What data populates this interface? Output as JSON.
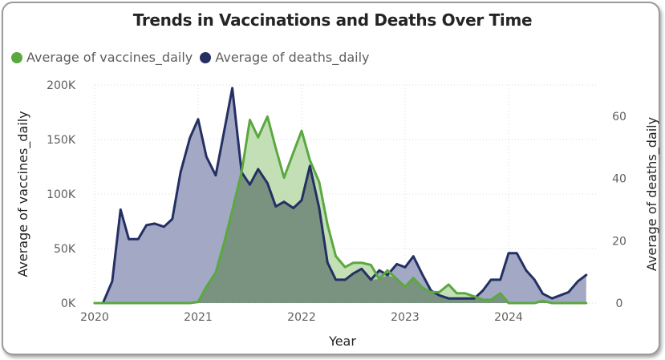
{
  "chart_data": {
    "type": "area",
    "title": "Trends in Vaccinations and Deaths Over Time",
    "xlabel": "Year",
    "ylabel_left": "Average of vaccines_daily",
    "ylabel_right": "Average of deaths_daily",
    "xlim": [
      2020.0,
      2024.8
    ],
    "ylim_left": [
      0,
      200000
    ],
    "ylim_right": [
      0,
      70
    ],
    "x_ticks": [
      "2020",
      "2021",
      "2022",
      "2023",
      "2024"
    ],
    "y_left_ticks": [
      "0K",
      "50K",
      "100K",
      "150K",
      "200K"
    ],
    "y_right_ticks": [
      "0",
      "20",
      "40",
      "60"
    ],
    "legend_position": "top-left",
    "grid": true,
    "series": [
      {
        "name": "Average of vaccines_daily",
        "axis": "left",
        "color": "#5ba840",
        "fill": "#b9d9a8",
        "points": [
          [
            2020.0,
            0
          ],
          [
            2020.08,
            0
          ],
          [
            2020.17,
            0
          ],
          [
            2020.25,
            0
          ],
          [
            2020.33,
            0
          ],
          [
            2020.42,
            0
          ],
          [
            2020.5,
            0
          ],
          [
            2020.58,
            0
          ],
          [
            2020.67,
            0
          ],
          [
            2020.75,
            0
          ],
          [
            2020.83,
            0
          ],
          [
            2020.92,
            0
          ],
          [
            2021.0,
            1000
          ],
          [
            2021.08,
            15000
          ],
          [
            2021.17,
            28000
          ],
          [
            2021.25,
            55000
          ],
          [
            2021.33,
            85000
          ],
          [
            2021.42,
            120000
          ],
          [
            2021.5,
            168000
          ],
          [
            2021.58,
            152000
          ],
          [
            2021.67,
            171000
          ],
          [
            2021.75,
            142000
          ],
          [
            2021.83,
            115000
          ],
          [
            2021.92,
            138000
          ],
          [
            2022.0,
            158000
          ],
          [
            2022.08,
            131000
          ],
          [
            2022.17,
            111000
          ],
          [
            2022.25,
            72000
          ],
          [
            2022.33,
            43000
          ],
          [
            2022.42,
            33000
          ],
          [
            2022.5,
            37000
          ],
          [
            2022.58,
            37000
          ],
          [
            2022.67,
            35000
          ],
          [
            2022.75,
            22000
          ],
          [
            2022.83,
            30000
          ],
          [
            2022.92,
            22000
          ],
          [
            2023.0,
            15000
          ],
          [
            2023.08,
            23000
          ],
          [
            2023.17,
            14000
          ],
          [
            2023.25,
            10000
          ],
          [
            2023.33,
            10000
          ],
          [
            2023.42,
            17000
          ],
          [
            2023.5,
            9000
          ],
          [
            2023.58,
            9000
          ],
          [
            2023.67,
            6000
          ],
          [
            2023.75,
            3000
          ],
          [
            2023.83,
            3000
          ],
          [
            2023.92,
            9000
          ],
          [
            2024.0,
            0
          ],
          [
            2024.08,
            0
          ],
          [
            2024.17,
            0
          ],
          [
            2024.25,
            0
          ],
          [
            2024.33,
            2000
          ],
          [
            2024.42,
            0
          ],
          [
            2024.5,
            0
          ],
          [
            2024.58,
            0
          ],
          [
            2024.67,
            0
          ],
          [
            2024.75,
            0
          ]
        ]
      },
      {
        "name": "Average of deaths_daily",
        "axis": "right",
        "color": "#243063",
        "fill": "#9ea4c2",
        "points": [
          [
            2020.0,
            0
          ],
          [
            2020.08,
            0
          ],
          [
            2020.17,
            7
          ],
          [
            2020.25,
            30
          ],
          [
            2020.33,
            20.5
          ],
          [
            2020.42,
            20.5
          ],
          [
            2020.5,
            25
          ],
          [
            2020.58,
            25.5
          ],
          [
            2020.67,
            24.5
          ],
          [
            2020.75,
            27
          ],
          [
            2020.83,
            42
          ],
          [
            2020.92,
            53
          ],
          [
            2021.0,
            59
          ],
          [
            2021.08,
            47
          ],
          [
            2021.17,
            41
          ],
          [
            2021.25,
            55
          ],
          [
            2021.33,
            69
          ],
          [
            2021.42,
            42
          ],
          [
            2021.5,
            38
          ],
          [
            2021.58,
            43
          ],
          [
            2021.67,
            38.5
          ],
          [
            2021.75,
            31
          ],
          [
            2021.83,
            32.5
          ],
          [
            2021.92,
            30.5
          ],
          [
            2022.0,
            33
          ],
          [
            2022.08,
            44
          ],
          [
            2022.17,
            30.5
          ],
          [
            2022.25,
            13
          ],
          [
            2022.33,
            7.5
          ],
          [
            2022.42,
            7.5
          ],
          [
            2022.5,
            9.5
          ],
          [
            2022.58,
            11
          ],
          [
            2022.67,
            7.5
          ],
          [
            2022.75,
            10.5
          ],
          [
            2022.83,
            9
          ],
          [
            2022.92,
            12.5
          ],
          [
            2023.0,
            11.5
          ],
          [
            2023.08,
            15
          ],
          [
            2023.17,
            9
          ],
          [
            2023.25,
            4
          ],
          [
            2023.33,
            2.5
          ],
          [
            2023.42,
            1.5
          ],
          [
            2023.5,
            1.5
          ],
          [
            2023.58,
            1.5
          ],
          [
            2023.67,
            1.5
          ],
          [
            2023.75,
            4
          ],
          [
            2023.83,
            7.5
          ],
          [
            2023.92,
            7.5
          ],
          [
            2024.0,
            16
          ],
          [
            2024.08,
            16
          ],
          [
            2024.17,
            10.5
          ],
          [
            2024.25,
            7.5
          ],
          [
            2024.33,
            3
          ],
          [
            2024.42,
            1.5
          ],
          [
            2024.5,
            2.5
          ],
          [
            2024.58,
            3.5
          ],
          [
            2024.67,
            7
          ],
          [
            2024.75,
            9
          ]
        ]
      }
    ]
  }
}
